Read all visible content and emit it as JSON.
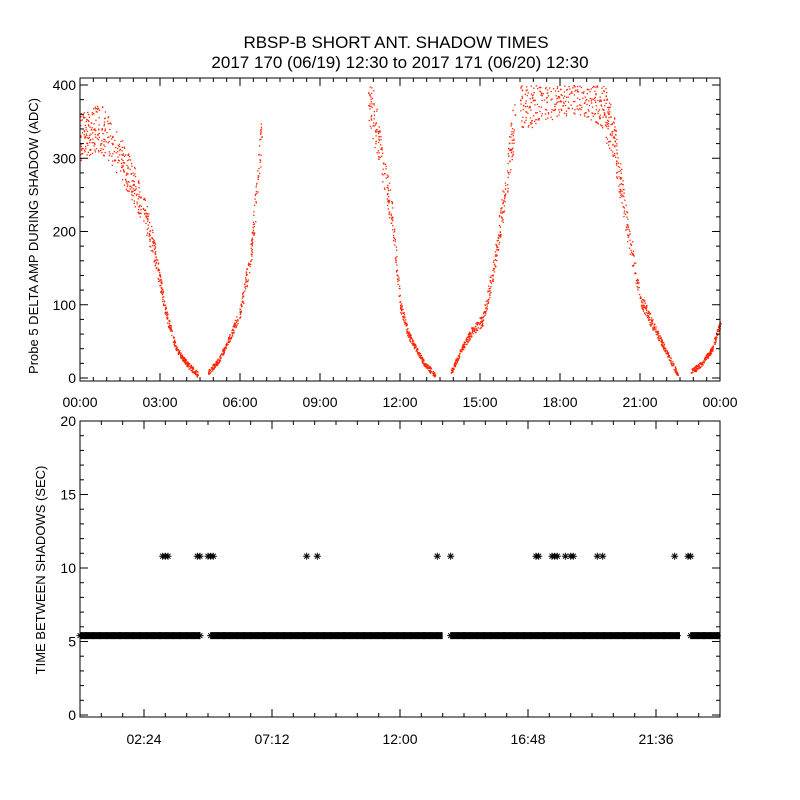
{
  "chart_data": [
    {
      "type": "scatter",
      "title_line1": "RBSP-B SHORT ANT. SHADOW TIMES",
      "title_line2": "2017 170 (06/19) 12:30 to 2017 171 (06/20) 12:30",
      "xlabel": "",
      "ylabel": "Probe 5 DELTA AMP DURING SHADOW (ADC)",
      "xlim_hours": [
        0,
        24
      ],
      "ylim": [
        0,
        400
      ],
      "xticks": [
        "00:00",
        "03:00",
        "06:00",
        "09:00",
        "12:00",
        "15:00",
        "18:00",
        "21:00",
        "00:00"
      ],
      "yticks": [
        "0",
        "100",
        "200",
        "300",
        "400"
      ],
      "color": "#ff2200",
      "series": [
        {
          "name": "segment 1",
          "x": [
            0.0,
            0.4,
            0.8,
            1.2,
            1.6,
            2.0,
            2.4,
            2.8,
            3.2,
            3.6,
            4.0,
            4.4
          ],
          "y": [
            330,
            340,
            340,
            320,
            295,
            265,
            230,
            170,
            90,
            40,
            20,
            5
          ]
        },
        {
          "name": "segment 2",
          "x": [
            4.8,
            5.2,
            5.6,
            6.0,
            6.4,
            6.8
          ],
          "y": [
            8,
            25,
            55,
            90,
            170,
            330
          ]
        },
        {
          "name": "segment 3",
          "x": [
            10.8,
            11.1,
            11.4,
            11.7,
            12.0,
            12.3,
            12.6,
            12.9,
            13.3
          ],
          "y": [
            390,
            340,
            280,
            220,
            100,
            60,
            40,
            20,
            5
          ]
        },
        {
          "name": "segment 4",
          "x": [
            13.9,
            14.3,
            14.7,
            15.1,
            15.5,
            15.9,
            16.3
          ],
          "y": [
            8,
            40,
            65,
            80,
            150,
            250,
            360
          ]
        },
        {
          "name": "segment 5",
          "x": [
            16.5,
            17.0,
            17.5,
            18.0,
            18.5,
            19.0,
            19.5,
            20.0,
            20.5,
            21.0,
            21.5,
            22.0,
            22.4
          ],
          "y": [
            380,
            380,
            390,
            395,
            400,
            395,
            380,
            330,
            210,
            110,
            70,
            35,
            5
          ]
        },
        {
          "name": "segment 6",
          "x": [
            22.9,
            23.3,
            23.7,
            24.0
          ],
          "y": [
            8,
            20,
            40,
            75
          ]
        }
      ]
    },
    {
      "type": "scatter",
      "title": "",
      "xlabel": "",
      "ylabel": "TIME BETWEEN SHADOWS (SEC)",
      "xlim_hours": [
        0,
        24
      ],
      "ylim": [
        0,
        20
      ],
      "xticks": [
        "02:24",
        "07:12",
        "12:00",
        "16:48",
        "21:36"
      ],
      "yticks": [
        "0",
        "5",
        "10",
        "15",
        "20"
      ],
      "marker": "asterisk",
      "color": "#000000",
      "baseline": {
        "value": 5.4,
        "ranges_hours": [
          [
            0.0,
            4.5
          ],
          [
            4.9,
            13.6
          ],
          [
            13.9,
            22.5
          ],
          [
            22.9,
            24.0
          ]
        ]
      },
      "points": {
        "y": 10.8,
        "x": [
          3.1,
          3.2,
          3.3,
          4.4,
          4.5,
          4.8,
          4.9,
          5.0,
          8.5,
          8.9,
          13.4,
          13.9,
          17.1,
          17.2,
          17.7,
          17.8,
          17.9,
          18.2,
          18.4,
          18.5,
          19.4,
          19.6,
          22.3,
          22.8,
          22.9
        ]
      }
    }
  ]
}
